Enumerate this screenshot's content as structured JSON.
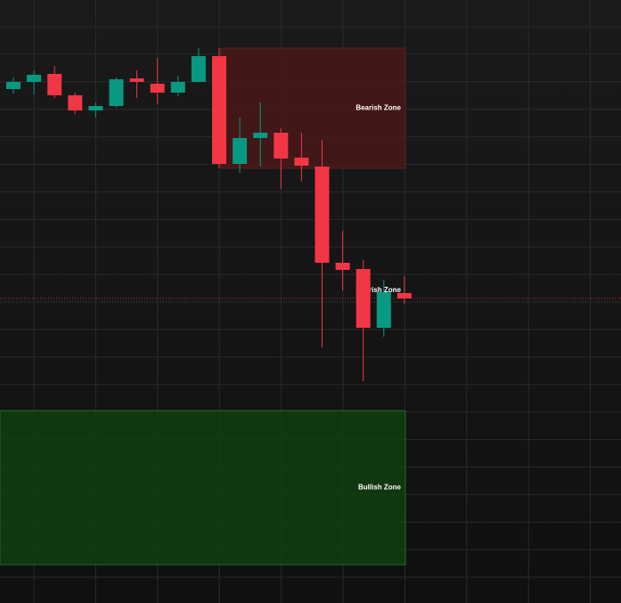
{
  "chart_data": {
    "type": "candlestick",
    "open": [
      577,
      585,
      594,
      570,
      553,
      558,
      589,
      583,
      573,
      585,
      614,
      493,
      522,
      528,
      500,
      490,
      382,
      375,
      309,
      348
    ],
    "high": [
      590,
      598,
      603,
      573,
      562,
      590,
      598,
      612,
      592,
      623,
      623,
      545,
      562,
      533,
      528,
      520,
      418,
      385,
      363,
      367
    ],
    "low": [
      572,
      571,
      567,
      549,
      545,
      556,
      567,
      560,
      569,
      585,
      488,
      483,
      490,
      465,
      473,
      287,
      351,
      249,
      299,
      336
    ],
    "close": [
      585,
      593,
      570,
      553,
      558,
      588,
      585,
      573,
      585,
      614,
      493,
      522,
      528,
      499,
      491,
      382,
      374,
      309,
      349,
      342
    ],
    "ylim": [
      0,
      677
    ],
    "grid": true,
    "up_color": "#089981",
    "down_color": "#f23645",
    "zones": [
      {
        "label": "Bearish Zone",
        "low": 488,
        "high": 623,
        "color": "#4a1818"
      },
      {
        "label": "Bullish Zone",
        "low": 43,
        "high": 216,
        "color": "#113f10"
      }
    ],
    "annotations": [
      {
        "text": "Bearish Zone",
        "value": 351
      }
    ],
    "price_line": {
      "value": 342,
      "color": "#f23645"
    }
  }
}
